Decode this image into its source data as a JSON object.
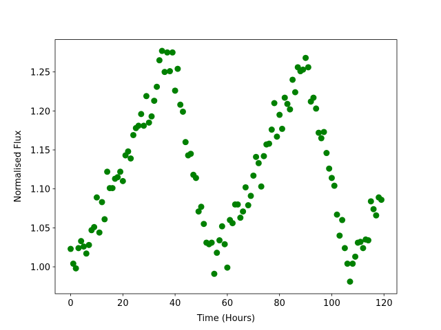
{
  "chart_data": {
    "type": "scatter",
    "xlabel": "Time (Hours)",
    "ylabel": "Normalised Flux",
    "color": "#008000",
    "x": [
      0,
      1,
      2,
      3,
      4,
      5,
      6,
      7,
      8,
      9,
      10,
      11,
      12,
      13,
      14,
      15,
      16,
      17,
      18,
      19,
      20,
      21,
      22,
      23,
      24,
      25,
      26,
      27,
      28,
      29,
      30,
      31,
      32,
      33,
      34,
      35,
      36,
      37,
      38,
      39,
      40,
      41,
      42,
      43,
      44,
      45,
      46,
      47,
      48,
      49,
      50,
      51,
      52,
      53,
      54,
      55,
      56,
      57,
      58,
      59,
      60,
      61,
      62,
      63,
      64,
      65,
      66,
      67,
      68,
      69,
      70,
      71,
      72,
      73,
      74,
      75,
      76,
      77,
      78,
      79,
      80,
      81,
      82,
      83,
      84,
      85,
      86,
      87,
      88,
      89,
      90,
      91,
      92,
      93,
      94,
      95,
      96,
      97,
      98,
      99,
      100,
      101,
      102,
      103,
      104,
      105,
      106,
      107,
      108,
      109,
      110,
      111,
      112,
      113,
      114,
      115,
      116,
      117,
      118,
      119
    ],
    "values": [
      1.023,
      1.004,
      0.998,
      1.024,
      1.033,
      1.026,
      1.017,
      1.028,
      1.047,
      1.051,
      1.089,
      1.044,
      1.083,
      1.061,
      1.122,
      1.101,
      1.101,
      1.113,
      1.115,
      1.122,
      1.11,
      1.143,
      1.148,
      1.139,
      1.169,
      1.178,
      1.181,
      1.196,
      1.181,
      1.219,
      1.185,
      1.193,
      1.213,
      1.231,
      1.265,
      1.277,
      1.25,
      1.275,
      1.251,
      1.275,
      1.226,
      1.254,
      1.208,
      1.199,
      1.16,
      1.143,
      1.145,
      1.118,
      1.114,
      1.071,
      1.077,
      1.055,
      1.031,
      1.029,
      1.031,
      0.991,
      1.018,
      1.034,
      1.052,
      1.029,
      0.999,
      1.06,
      1.056,
      1.08,
      1.08,
      1.063,
      1.071,
      1.102,
      1.079,
      1.091,
      1.117,
      1.141,
      1.133,
      1.103,
      1.142,
      1.157,
      1.158,
      1.176,
      1.21,
      1.167,
      1.195,
      1.177,
      1.217,
      1.209,
      1.202,
      1.24,
      1.224,
      1.256,
      1.251,
      1.253,
      1.268,
      1.256,
      1.212,
      1.217,
      1.203,
      1.172,
      1.165,
      1.173,
      1.146,
      1.126,
      1.114,
      1.104,
      1.067,
      1.04,
      1.06,
      1.024,
      1.004,
      0.981,
      1.004,
      1.013,
      1.031,
      1.032,
      1.024,
      1.035,
      1.034,
      1.084,
      1.074,
      1.066,
      1.089,
      1.086
    ],
    "xlim": [
      -5.95,
      124.95
    ],
    "ylim": [
      0.9655,
      1.2915
    ],
    "xticks": [
      0,
      20,
      40,
      60,
      80,
      100,
      120
    ],
    "yticks": [
      {
        "value": 1.0,
        "label": "1.00"
      },
      {
        "value": 1.05,
        "label": "1.05"
      },
      {
        "value": 1.1,
        "label": "1.10"
      },
      {
        "value": 1.15,
        "label": "1.15"
      },
      {
        "value": 1.2,
        "label": "1.20"
      },
      {
        "value": 1.25,
        "label": "1.25"
      }
    ]
  }
}
